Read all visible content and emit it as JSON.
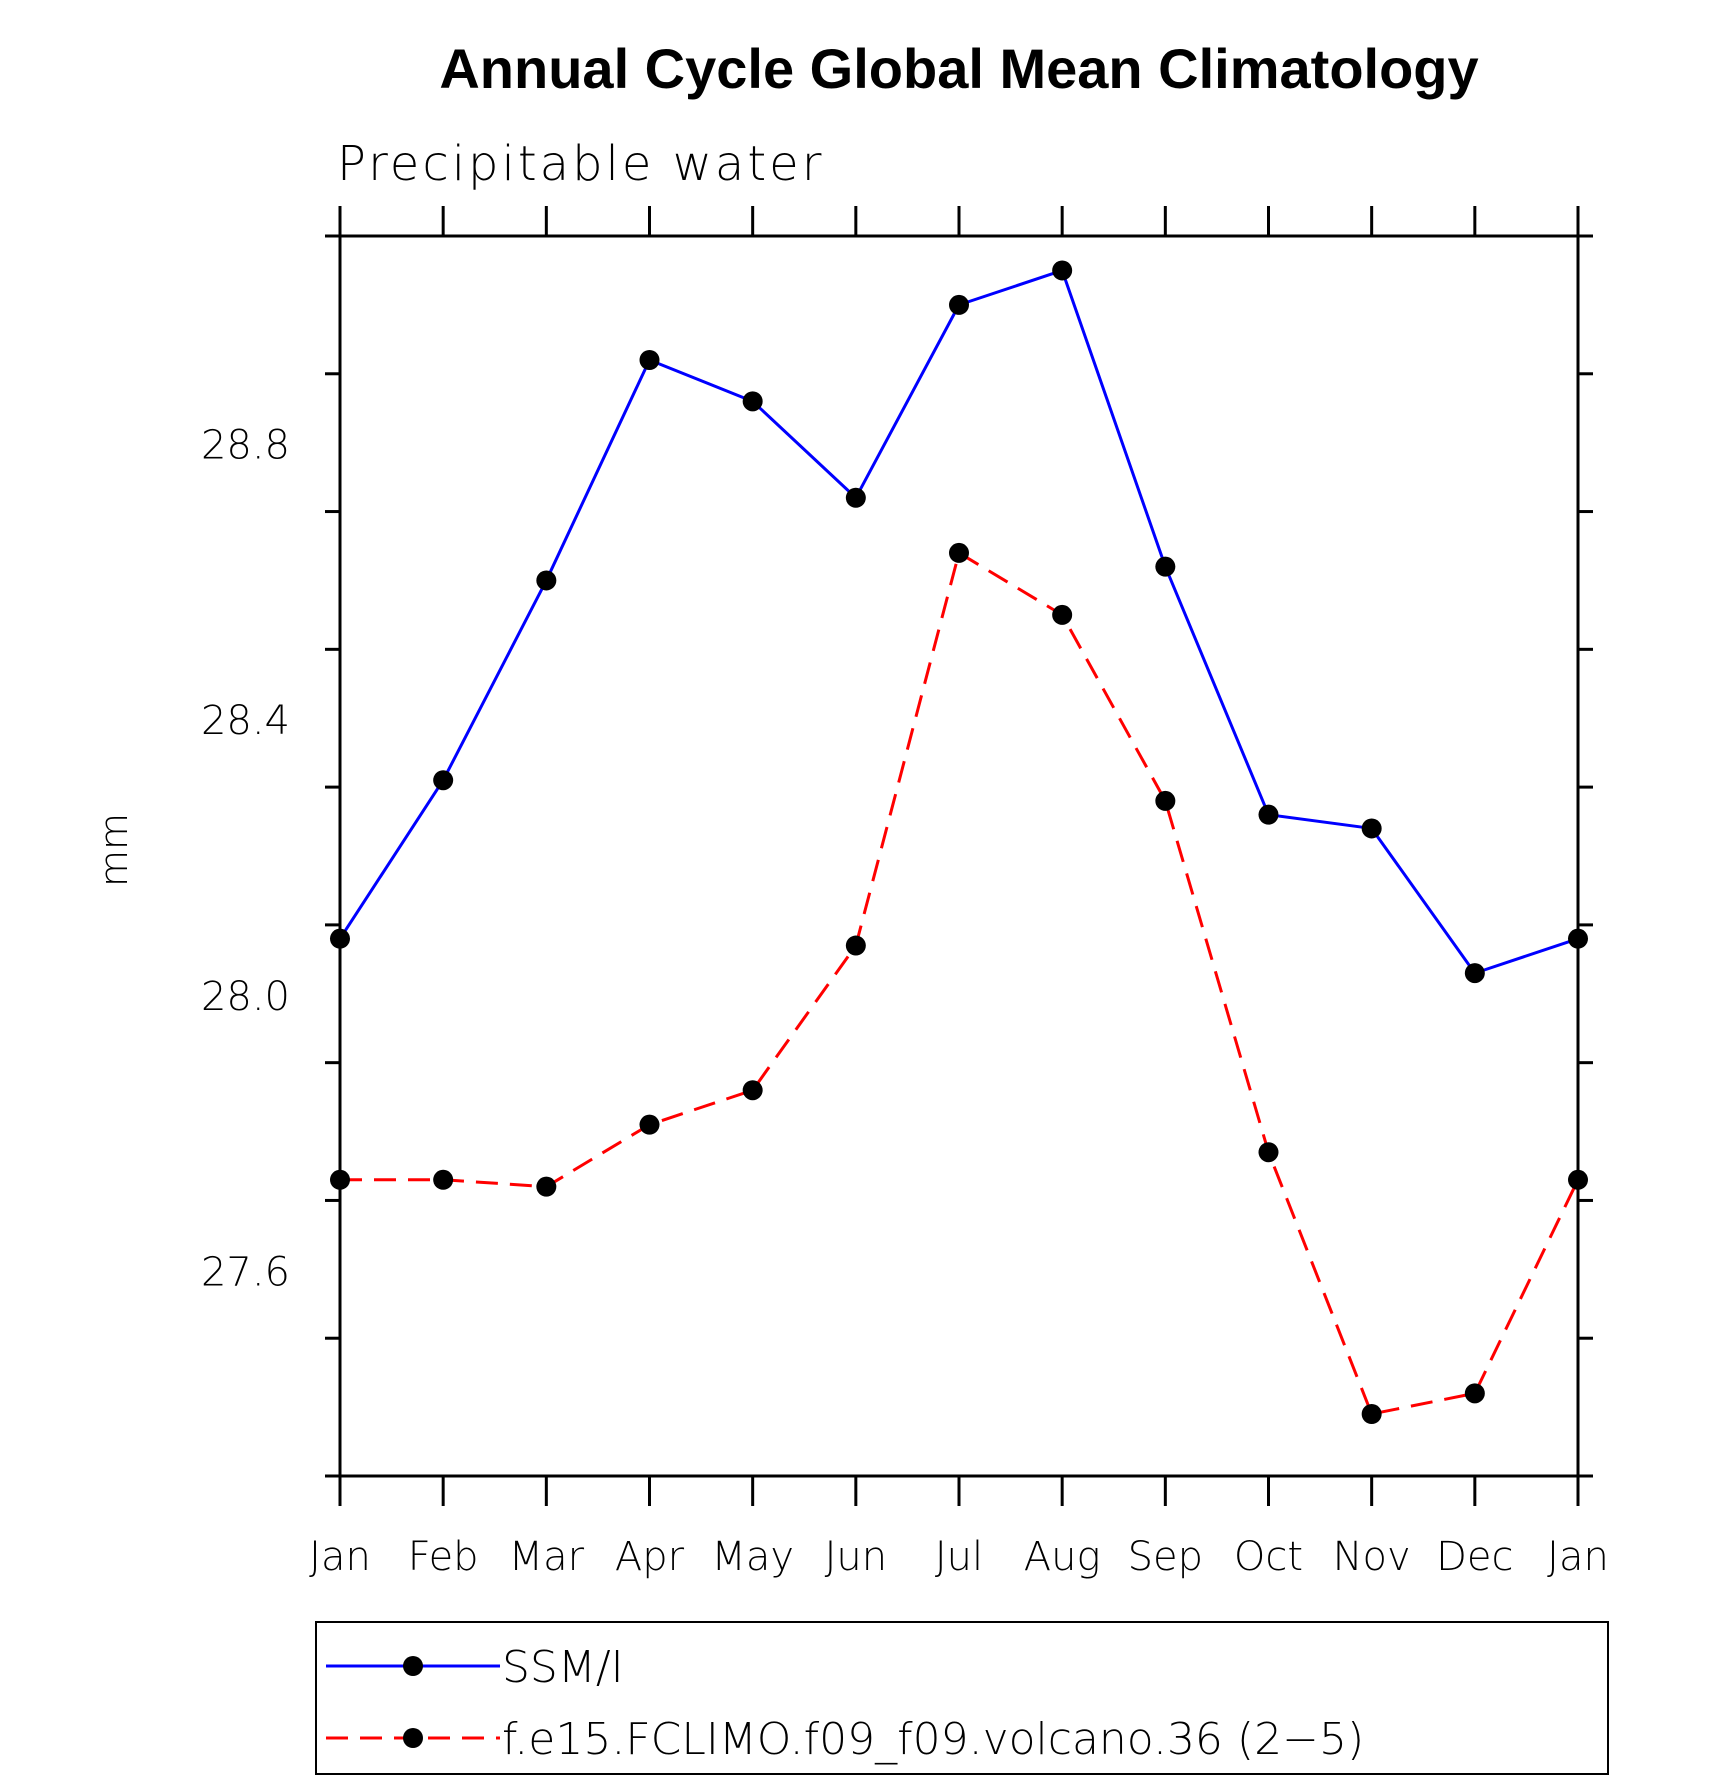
{
  "chart_data": {
    "type": "line",
    "title": "Annual Cycle Global Mean Climatology",
    "subtitle": "Precipitable water",
    "xlabel": "",
    "ylabel": "mm",
    "categories": [
      "Jan",
      "Feb",
      "Mar",
      "Apr",
      "May",
      "Jun",
      "Jul",
      "Aug",
      "Sep",
      "Oct",
      "Nov",
      "Dec",
      "Jan"
    ],
    "ylim": [
      27.3,
      29.1
    ],
    "yticks_major": [
      27.6,
      28.0,
      28.4,
      28.8
    ],
    "ytick_labels": [
      "27.6",
      "28.0",
      "28.4",
      "28.8"
    ],
    "grid": false,
    "legend_placement": "bottom",
    "series": [
      {
        "name": "SSM/I",
        "color": "#0000ff",
        "dash": "solid",
        "marker": "filled-circle",
        "values": [
          28.08,
          28.31,
          28.6,
          28.92,
          28.86,
          28.72,
          29.0,
          29.05,
          28.62,
          28.26,
          28.24,
          28.03,
          28.08
        ]
      },
      {
        "name": "f.e15.FCLIMO.f09_f09.volcano.36 (2−5)",
        "color": "#ff0000",
        "dash": "dashed",
        "marker": "filled-circle",
        "values": [
          27.73,
          27.73,
          27.72,
          27.81,
          27.86,
          28.07,
          28.64,
          28.55,
          28.28,
          27.77,
          27.39,
          27.42,
          27.73
        ]
      }
    ]
  }
}
